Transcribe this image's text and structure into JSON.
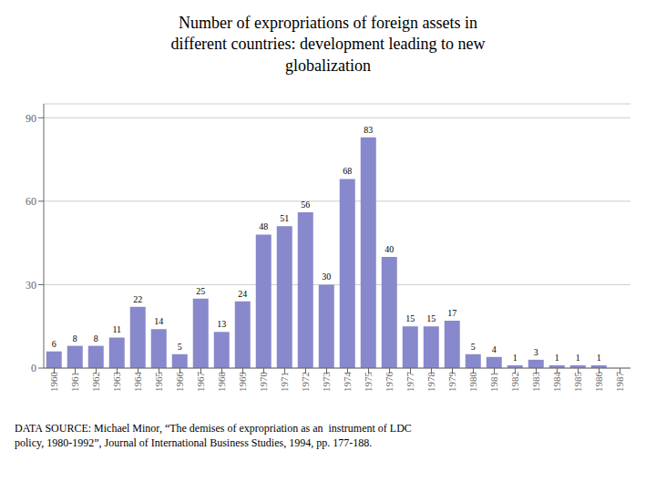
{
  "chart_data": {
    "type": "bar",
    "title": "Number of expropriations of foreign assets in\ndifferent countries: development leading to new\nglobalization",
    "categories": [
      "1960",
      "1961",
      "1962",
      "1963",
      "1964",
      "1965",
      "1966",
      "1967",
      "1968",
      "1969",
      "1970",
      "1971",
      "1972",
      "1973",
      "1974",
      "1975",
      "1976",
      "1977",
      "1978",
      "1979",
      "1980",
      "1981",
      "1982",
      "1983",
      "1984",
      "1985",
      "1986",
      "1987"
    ],
    "values": [
      6,
      8,
      8,
      11,
      22,
      14,
      5,
      25,
      13,
      24,
      48,
      51,
      56,
      30,
      68,
      83,
      40,
      15,
      15,
      17,
      5,
      4,
      1,
      3,
      1,
      1,
      1,
      0
    ],
    "color": "#8888cc",
    "ylim": [
      0,
      95
    ],
    "yticks": [
      0,
      30,
      60,
      90
    ],
    "grid": true,
    "data_labels": true,
    "annotations": [
      "DATA SOURCE: Michael Minor, “The demises of expropriation as an  instrument of LDC\npolicy, 1980-1992”, Journal of International Business Studies, 1994, pp. 177-188."
    ]
  }
}
